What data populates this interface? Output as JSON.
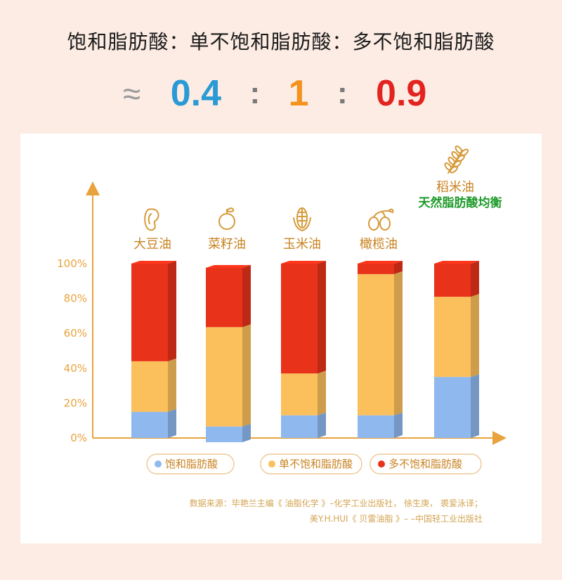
{
  "headline": "饱和脂肪酸：单不饱和脂肪酸：多不饱和脂肪酸",
  "ratio": {
    "approx": "≈",
    "values": [
      "0.4",
      "1",
      "0.9"
    ],
    "separator": ":",
    "colors": [
      "#2a9ad6",
      "#f4921d",
      "#e3231f"
    ]
  },
  "chart_data": {
    "type": "bar",
    "stacked": true,
    "categories": [
      "大豆油",
      "菜籽油",
      "玉米油",
      "橄榄油",
      "稻米油"
    ],
    "category_icons": [
      "bean-icon",
      "rapeseed-icon",
      "corn-icon",
      "olive-icon",
      "wheat-icon"
    ],
    "highlight_category": "稻米油",
    "highlight_text": "天然脂肪酸均衡",
    "series": [
      {
        "name": "饱和脂肪酸",
        "values": [
          15,
          9,
          13,
          13,
          35
        ],
        "color": "#8fb8ee"
      },
      {
        "name": "单不饱和脂肪酸",
        "values": [
          29,
          57,
          24,
          81,
          46
        ],
        "color": "#fbbf5c"
      },
      {
        "name": "多不饱和脂肪酸",
        "values": [
          56,
          34,
          63,
          6,
          19
        ],
        "color": "#e8321a"
      }
    ],
    "ylim": [
      0,
      100
    ],
    "yticks": [
      "0%",
      "20%",
      "40%",
      "60%",
      "80%",
      "100%"
    ],
    "legend_position": "bottom"
  },
  "legend": [
    "饱和脂肪酸",
    "单不饱和脂肪酸",
    "多不饱和脂肪酸"
  ],
  "source": {
    "line1": "数据来源：毕艳兰主编《 油脂化学 》–化学工业出版社， 徐生庚， 裘爱泳译；",
    "line2": "美Y.H.HUI《 贝雷油脂 》– –中国轻工业出版社"
  }
}
